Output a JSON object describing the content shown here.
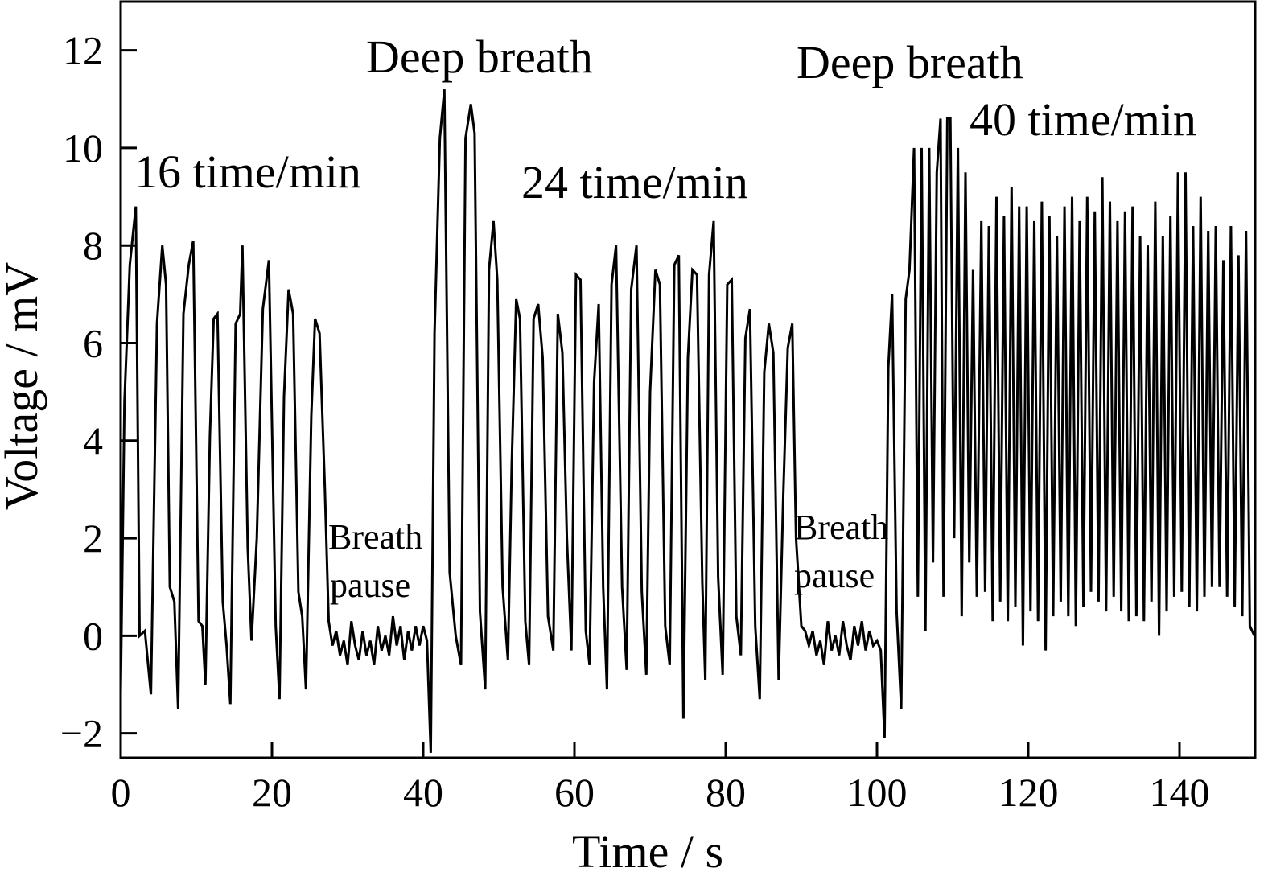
{
  "chart_data": {
    "type": "line",
    "xlabel": "Time / s",
    "ylabel": "Voltage / mV",
    "annotations": [
      "16 time/min",
      "Deep breath",
      "24 time/min",
      "Deep breath",
      "40 time/min",
      "Breath",
      "pause",
      "Breath",
      "pause"
    ],
    "color": "#000000",
    "xlim": [
      0,
      150
    ],
    "ylim": [
      -2.5,
      13
    ],
    "xticks": [
      0,
      20,
      40,
      60,
      80,
      100,
      120,
      140
    ],
    "yticks": [
      {
        "value": -2,
        "label": "−2"
      },
      0,
      2,
      4,
      6,
      8,
      10,
      12
    ],
    "x": [
      0,
      0.5,
      1.2,
      2,
      2.5,
      3.2,
      4,
      4.8,
      5.5,
      6,
      6.5,
      7.1,
      7.6,
      8.3,
      9,
      9.6,
      10.3,
      10.8,
      11.2,
      11.8,
      12.3,
      12.8,
      13.5,
      14,
      14.5,
      15.2,
      15.8,
      16.1,
      16.8,
      17.3,
      18,
      18.8,
      19.6,
      20.5,
      21,
      21.6,
      22.2,
      22.8,
      23.5,
      24,
      24.5,
      25.2,
      25.7,
      26.3,
      27,
      27.5,
      28,
      28.5,
      29,
      29.5,
      30,
      30.5,
      31,
      31.5,
      32,
      32.5,
      33,
      33.5,
      34,
      34.5,
      35,
      35.5,
      36,
      36.5,
      37,
      37.5,
      38,
      38.5,
      39,
      39.5,
      40,
      40.5,
      41,
      41.5,
      42.2,
      42.8,
      43.5,
      44.3,
      45,
      45.6,
      46.3,
      46.8,
      47.5,
      48.2,
      48.7,
      49.3,
      49.8,
      50.5,
      51.2,
      51.7,
      52.3,
      52.8,
      53.5,
      54,
      54.6,
      55.2,
      55.8,
      56.5,
      57.2,
      57.8,
      58.4,
      59,
      59.6,
      60.2,
      60.8,
      61.5,
      62,
      62.6,
      63.2,
      63.8,
      64.3,
      64.9,
      65.5,
      66.3,
      66.9,
      67.5,
      68.2,
      68.9,
      69.5,
      70,
      70.7,
      71.3,
      72,
      72.6,
      73.2,
      73.8,
      74.4,
      75,
      75.6,
      76.2,
      76.9,
      77.3,
      77.8,
      78.4,
      79,
      79.6,
      80.2,
      80.8,
      81.4,
      82,
      82.6,
      83.2,
      83.9,
      84.5,
      85.1,
      85.7,
      86.3,
      87,
      87.6,
      88.2,
      88.8,
      89.3,
      90,
      90.5,
      91,
      91.5,
      92,
      92.5,
      93,
      93.5,
      94,
      94.5,
      95,
      95.5,
      96,
      96.5,
      97,
      97.5,
      98,
      98.5,
      99,
      99.5,
      100,
      100.5,
      101,
      101.5,
      102,
      102.6,
      103.2,
      103.8,
      104.3,
      104.9,
      105.4,
      105.9,
      106.4,
      106.9,
      107.4,
      107.9,
      108.4,
      108.8,
      109.3,
      109.7,
      110.2,
      110.7,
      111.2,
      111.7,
      112.2,
      112.7,
      113.2,
      113.8,
      114.3,
      114.8,
      115.3,
      115.8,
      116.3,
      116.8,
      117.3,
      117.8,
      118.3,
      118.8,
      119.3,
      119.8,
      120.3,
      120.8,
      121.3,
      121.8,
      122.3,
      122.8,
      123.3,
      123.8,
      124.3,
      124.8,
      125.3,
      125.8,
      126.3,
      126.8,
      127.3,
      127.8,
      128.3,
      128.8,
      129.3,
      129.8,
      130.3,
      130.8,
      131.3,
      131.8,
      132.3,
      132.8,
      133.3,
      133.8,
      134.3,
      134.8,
      135.3,
      135.8,
      136.3,
      136.8,
      137.3,
      137.8,
      138.3,
      138.8,
      139.3,
      139.8,
      140.3,
      140.8,
      141.3,
      141.8,
      142.3,
      142.8,
      143.3,
      143.8,
      144.3,
      144.8,
      145.3,
      145.8,
      146.3,
      146.8,
      147.3,
      147.8,
      148.3,
      148.8,
      149.3,
      149.9
    ],
    "values": [
      -1.2,
      4.8,
      7.6,
      8.8,
      0,
      0.1,
      -1.2,
      6.4,
      8,
      7.2,
      1,
      0.7,
      -1.5,
      6.6,
      7.6,
      8.1,
      0.3,
      0.2,
      -1,
      4.1,
      6.5,
      6.6,
      0.7,
      -0.2,
      -1.4,
      6.4,
      6.6,
      8,
      1.8,
      -0.1,
      2,
      6.7,
      7.7,
      0.2,
      -1.3,
      4.9,
      7.1,
      6.6,
      0.9,
      0.4,
      -1.1,
      4.5,
      6.5,
      6.2,
      3,
      0.3,
      -0.2,
      0.1,
      -0.4,
      -0.1,
      -0.6,
      0.3,
      -0.2,
      -0.5,
      0.1,
      -0.4,
      -0.1,
      -0.6,
      0.2,
      -0.3,
      0,
      -0.4,
      0.4,
      -0.2,
      0.2,
      -0.5,
      0.1,
      -0.3,
      0.2,
      -0.2,
      0.2,
      -0.1,
      -2.4,
      6.2,
      10.2,
      11.2,
      1.3,
      0,
      -0.6,
      10.2,
      10.9,
      10.3,
      0.5,
      -1.1,
      7.5,
      8.5,
      7.3,
      1,
      -0.5,
      3.5,
      6.9,
      6.5,
      0.3,
      -0.6,
      6.5,
      6.8,
      5.7,
      0.4,
      -0.3,
      6.6,
      5.8,
      2,
      -0.3,
      7.4,
      7.3,
      0.1,
      -0.6,
      5.2,
      6.8,
      1,
      -1.1,
      7.2,
      8,
      1,
      -0.7,
      7.1,
      8,
      0.9,
      -0.8,
      5,
      7.5,
      7.2,
      0.2,
      -0.6,
      7.6,
      7.8,
      -1.7,
      5.7,
      7.5,
      7.4,
      1.1,
      -0.9,
      7.4,
      8.5,
      1.2,
      -0.8,
      7.2,
      7.3,
      0.4,
      -0.4,
      6.1,
      6.7,
      0.2,
      -1.3,
      5.4,
      6.4,
      5.8,
      -0.9,
      2.8,
      5.9,
      6.4,
      2,
      0.2,
      0.1,
      -0.2,
      0.1,
      -0.4,
      -0.1,
      -0.6,
      0.3,
      -0.3,
      0,
      -0.4,
      0.3,
      -0.2,
      -0.5,
      0.2,
      -0.2,
      0.3,
      -0.3,
      0.1,
      -0.2,
      -0.1,
      -0.3,
      -2.1,
      5.5,
      7,
      0.5,
      -1.5,
      6.9,
      7.5,
      10,
      0.8,
      10,
      0.1,
      10,
      1.5,
      9.5,
      10.6,
      0.8,
      10.6,
      10.6,
      2,
      10,
      0.4,
      9.5,
      1.5,
      7.5,
      0.8,
      8.5,
      0.9,
      8.4,
      0.3,
      9,
      0.7,
      8.6,
      0.3,
      9.2,
      0.6,
      8.8,
      -0.2,
      8.8,
      0.5,
      8.5,
      0.3,
      8.9,
      -0.3,
      8.6,
      0.4,
      8.2,
      0.7,
      8.8,
      0.4,
      9,
      0.2,
      8.5,
      0.6,
      9,
      0.9,
      8.7,
      0.7,
      9.4,
      0.5,
      8.9,
      0.8,
      8.5,
      0.5,
      8.7,
      0.3,
      8.8,
      0.4,
      8.2,
      0.3,
      8,
      0.7,
      8.9,
      0,
      8.2,
      0.5,
      8.6,
      0.8,
      9.5,
      0.9,
      9.5,
      0.6,
      8.4,
      0.5,
      9,
      0.8,
      8.3,
      1,
      8.4,
      1,
      7.7,
      0.8,
      8.4,
      0.6,
      7.8,
      0.4,
      8.3,
      0.2,
      0
    ]
  }
}
